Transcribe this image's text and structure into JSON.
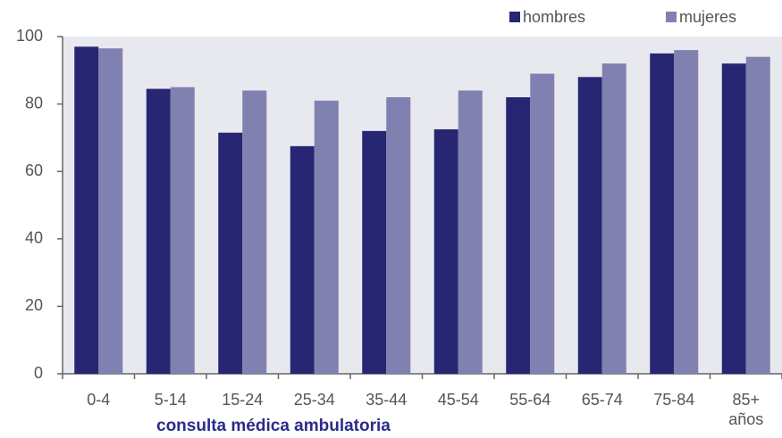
{
  "chart_data": {
    "type": "bar",
    "xlabel": "consulta médica ambulatoria",
    "categories": [
      "0-4",
      "5-14",
      "15-24",
      "25-34",
      "35-44",
      "45-54",
      "55-64",
      "65-74",
      "75-84",
      "85+ años"
    ],
    "series": [
      {
        "name": "hombres",
        "color": "#262673",
        "values": [
          97,
          84.5,
          71.5,
          67.5,
          72,
          72.5,
          82,
          88,
          95,
          92
        ]
      },
      {
        "name": "mujeres",
        "color": "#8181b1",
        "values": [
          96.5,
          85,
          84,
          81,
          82,
          84,
          89,
          92,
          96,
          94
        ]
      }
    ],
    "ylim": [
      0,
      100
    ],
    "yticks": [
      0,
      20,
      40,
      60,
      80,
      100
    ],
    "grid": false,
    "legend": "top-right"
  }
}
